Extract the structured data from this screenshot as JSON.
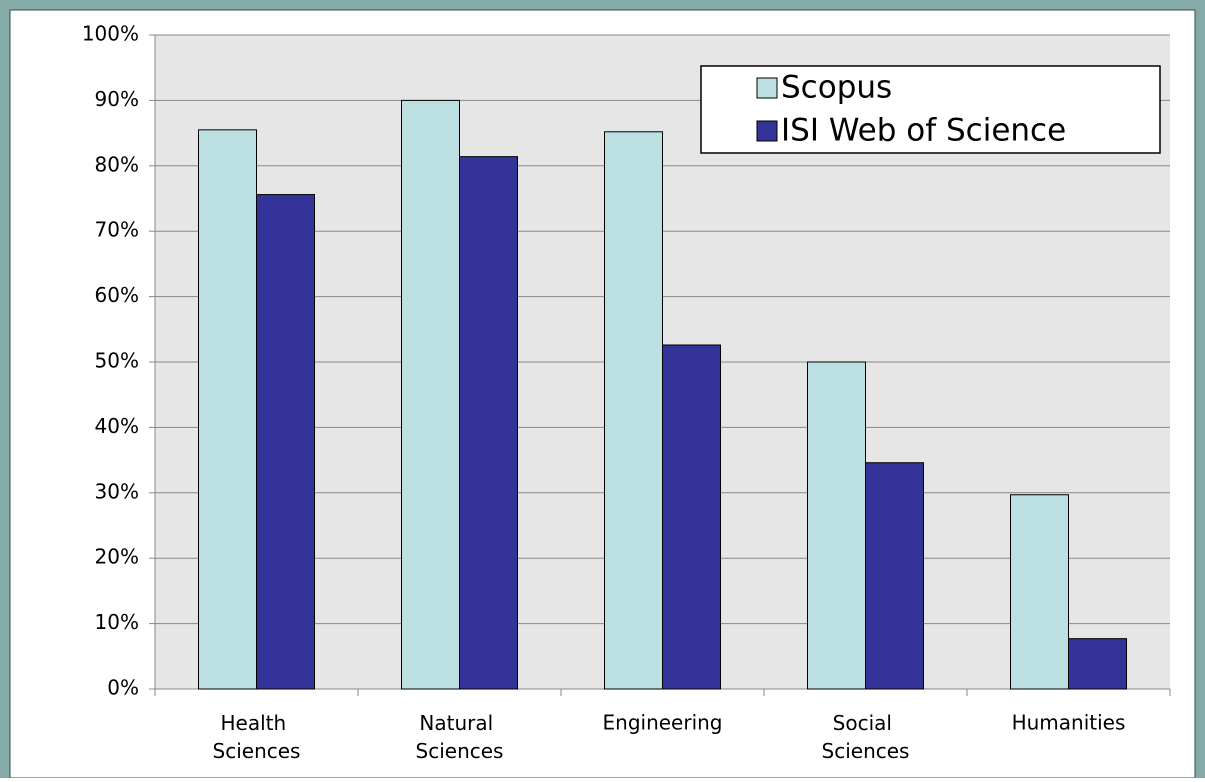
{
  "chart_data": {
    "type": "bar",
    "categories": [
      "Health Sciences",
      "Natural Sciences",
      "Engineering",
      "Social Sciences",
      "Humanities"
    ],
    "series": [
      {
        "name": "Scopus",
        "color": "#bce0e2",
        "values": [
          85.5,
          90,
          85.2,
          50,
          29.7
        ]
      },
      {
        "name": "ISI Web of Science",
        "color": "#333399",
        "values": [
          75.6,
          81.4,
          52.6,
          34.6,
          7.7
        ]
      }
    ],
    "ylim": [
      0,
      100
    ],
    "yticks": [
      {
        "value": 0,
        "label": "0%"
      },
      {
        "value": 10,
        "label": "10%"
      },
      {
        "value": 20,
        "label": "20%"
      },
      {
        "value": 30,
        "label": "30%"
      },
      {
        "value": 40,
        "label": "40%"
      },
      {
        "value": 50,
        "label": "50%"
      },
      {
        "value": 60,
        "label": "60%"
      },
      {
        "value": 70,
        "label": "70%"
      },
      {
        "value": 80,
        "label": "80%"
      },
      {
        "value": 90,
        "label": "90%"
      },
      {
        "value": 100,
        "label": "100%"
      }
    ],
    "grid": true,
    "legend": "upper right"
  }
}
